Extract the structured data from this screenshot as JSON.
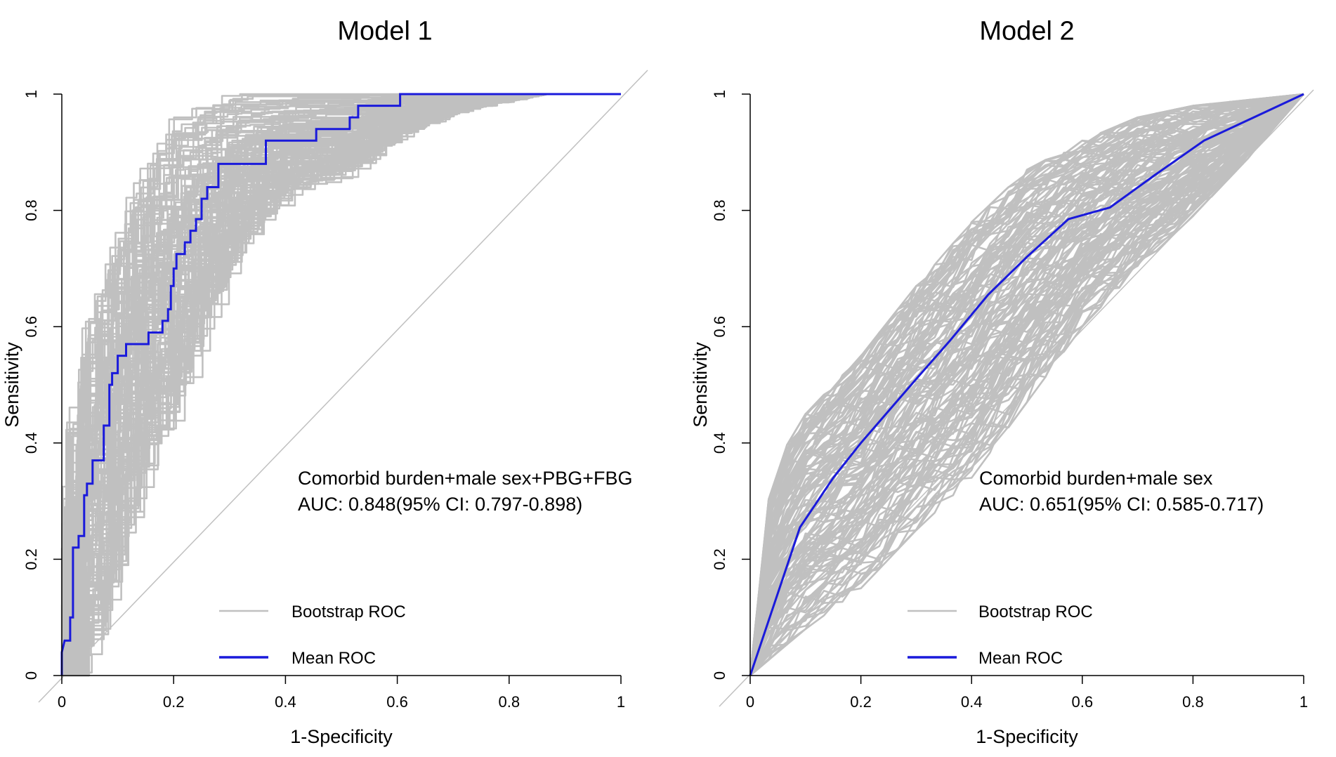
{
  "chart_data": [
    {
      "type": "line",
      "title": "Model 1",
      "xlabel": "1-Specificity",
      "ylabel": "Sensitivity",
      "xlim": [
        0,
        1
      ],
      "ylim": [
        0,
        1
      ],
      "xticks": [
        "0",
        "0.2",
        "0.4",
        "0.6",
        "0.8",
        "1"
      ],
      "yticks": [
        "0",
        "0.2",
        "0.4",
        "0.6",
        "0.8",
        "1"
      ],
      "annotation": {
        "line1": "Comorbid burden+male sex+PBG+FBG",
        "line2": "AUC: 0.848(95% CI: 0.797-0.898)"
      },
      "legend": [
        {
          "label": "Bootstrap ROC",
          "color": "#c0c0c0"
        },
        {
          "label": "Mean ROC",
          "color": "#1a1adb"
        }
      ],
      "series": [
        {
          "name": "Mean ROC",
          "color": "#1a1adb",
          "points": [
            [
              0,
              0
            ],
            [
              0,
              0.04
            ],
            [
              0.005,
              0.06
            ],
            [
              0.015,
              0.06
            ],
            [
              0.015,
              0.1
            ],
            [
              0.02,
              0.1
            ],
            [
              0.02,
              0.22
            ],
            [
              0.03,
              0.22
            ],
            [
              0.03,
              0.24
            ],
            [
              0.04,
              0.24
            ],
            [
              0.04,
              0.31
            ],
            [
              0.045,
              0.31
            ],
            [
              0.045,
              0.33
            ],
            [
              0.055,
              0.33
            ],
            [
              0.055,
              0.37
            ],
            [
              0.075,
              0.37
            ],
            [
              0.075,
              0.43
            ],
            [
              0.085,
              0.43
            ],
            [
              0.085,
              0.5
            ],
            [
              0.09,
              0.5
            ],
            [
              0.09,
              0.52
            ],
            [
              0.1,
              0.52
            ],
            [
              0.1,
              0.55
            ],
            [
              0.115,
              0.55
            ],
            [
              0.115,
              0.57
            ],
            [
              0.155,
              0.57
            ],
            [
              0.155,
              0.59
            ],
            [
              0.18,
              0.59
            ],
            [
              0.18,
              0.61
            ],
            [
              0.19,
              0.61
            ],
            [
              0.19,
              0.63
            ],
            [
              0.195,
              0.63
            ],
            [
              0.195,
              0.67
            ],
            [
              0.2,
              0.67
            ],
            [
              0.2,
              0.7
            ],
            [
              0.205,
              0.7
            ],
            [
              0.205,
              0.725
            ],
            [
              0.22,
              0.725
            ],
            [
              0.22,
              0.745
            ],
            [
              0.23,
              0.745
            ],
            [
              0.23,
              0.765
            ],
            [
              0.24,
              0.765
            ],
            [
              0.24,
              0.785
            ],
            [
              0.25,
              0.785
            ],
            [
              0.25,
              0.82
            ],
            [
              0.26,
              0.82
            ],
            [
              0.26,
              0.84
            ],
            [
              0.28,
              0.84
            ],
            [
              0.28,
              0.88
            ],
            [
              0.365,
              0.88
            ],
            [
              0.365,
              0.92
            ],
            [
              0.455,
              0.92
            ],
            [
              0.455,
              0.94
            ],
            [
              0.515,
              0.94
            ],
            [
              0.515,
              0.96
            ],
            [
              0.53,
              0.96
            ],
            [
              0.53,
              0.98
            ],
            [
              0.605,
              0.98
            ],
            [
              0.605,
              1
            ],
            [
              1,
              1
            ]
          ]
        },
        {
          "name": "Bootstrap ROC",
          "color": "#c0c0c0",
          "envelope": {
            "upper": [
              [
                0,
                0
              ],
              [
                0,
                0.45
              ],
              [
                0.03,
                0.58
              ],
              [
                0.06,
                0.68
              ],
              [
                0.1,
                0.79
              ],
              [
                0.15,
                0.9
              ],
              [
                0.2,
                0.97
              ],
              [
                0.25,
                0.99
              ],
              [
                0.3,
                1
              ]
            ],
            "lower": [
              [
                0,
                0
              ],
              [
                0.06,
                0.05
              ],
              [
                0.1,
                0.22
              ],
              [
                0.15,
                0.37
              ],
              [
                0.2,
                0.47
              ],
              [
                0.25,
                0.6
              ],
              [
                0.3,
                0.72
              ],
              [
                0.35,
                0.78
              ],
              [
                0.4,
                0.83
              ],
              [
                0.5,
                0.86
              ],
              [
                0.6,
                0.93
              ],
              [
                0.7,
                0.97
              ],
              [
                0.84,
                1
              ]
            ]
          }
        }
      ]
    },
    {
      "type": "line",
      "title": "Model 2",
      "xlabel": "1-Specificity",
      "ylabel": "Sensitivity",
      "xlim": [
        0,
        1
      ],
      "ylim": [
        0,
        1
      ],
      "xticks": [
        "0",
        "0.2",
        "0.4",
        "0.6",
        "0.8",
        "1"
      ],
      "yticks": [
        "0",
        "0.2",
        "0.4",
        "0.6",
        "0.8",
        "1"
      ],
      "annotation": {
        "line1": "Comorbid burden+male sex",
        "line2": "AUC: 0.651(95% CI: 0.585-0.717)"
      },
      "legend": [
        {
          "label": "Bootstrap ROC",
          "color": "#c0c0c0"
        },
        {
          "label": "Mean ROC",
          "color": "#1a1adb"
        }
      ],
      "series": [
        {
          "name": "Mean ROC",
          "color": "#1a1adb",
          "points": [
            [
              0,
              0
            ],
            [
              0.09,
              0.255
            ],
            [
              0.15,
              0.34
            ],
            [
              0.2,
              0.4
            ],
            [
              0.3,
              0.51
            ],
            [
              0.36,
              0.575
            ],
            [
              0.43,
              0.655
            ],
            [
              0.5,
              0.72
            ],
            [
              0.575,
              0.785
            ],
            [
              0.65,
              0.805
            ],
            [
              0.73,
              0.86
            ],
            [
              0.82,
              0.92
            ],
            [
              1,
              1
            ]
          ]
        },
        {
          "name": "Bootstrap ROC",
          "color": "#c0c0c0",
          "envelope": {
            "upper": [
              [
                0,
                0
              ],
              [
                0.02,
                0.25
              ],
              [
                0.05,
                0.37
              ],
              [
                0.1,
                0.45
              ],
              [
                0.2,
                0.55
              ],
              [
                0.3,
                0.67
              ],
              [
                0.4,
                0.78
              ],
              [
                0.5,
                0.87
              ],
              [
                0.6,
                0.92
              ],
              [
                0.7,
                0.96
              ],
              [
                0.8,
                0.98
              ],
              [
                0.9,
                0.99
              ],
              [
                1,
                1
              ]
            ],
            "lower": [
              [
                0,
                0
              ],
              [
                0.1,
                0.08
              ],
              [
                0.2,
                0.15
              ],
              [
                0.3,
                0.25
              ],
              [
                0.4,
                0.34
              ],
              [
                0.5,
                0.47
              ],
              [
                0.6,
                0.6
              ],
              [
                0.7,
                0.7
              ],
              [
                0.8,
                0.79
              ],
              [
                0.9,
                0.89
              ],
              [
                1,
                1
              ]
            ]
          }
        }
      ]
    }
  ]
}
